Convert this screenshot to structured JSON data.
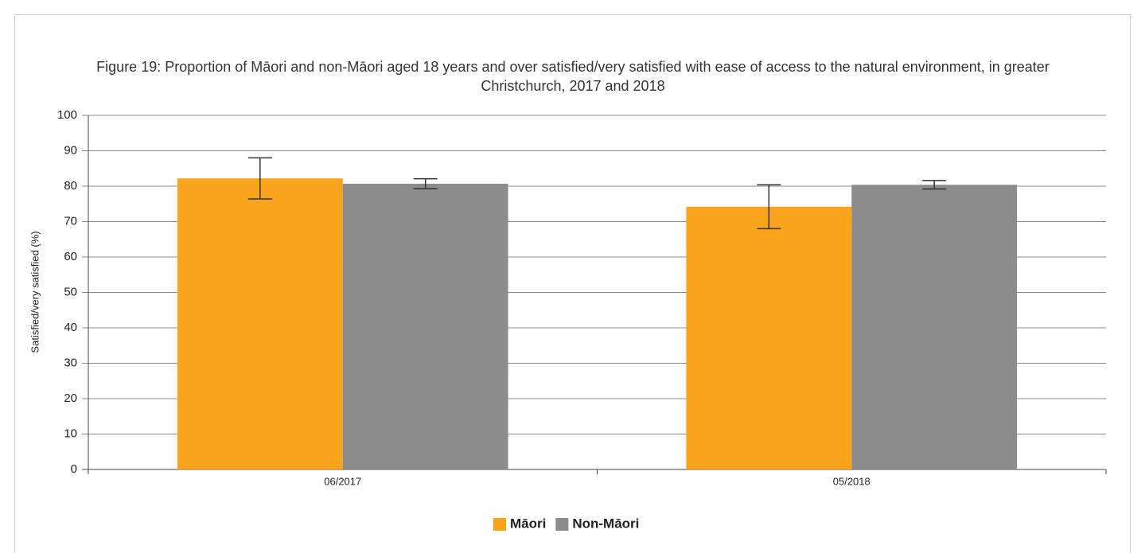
{
  "chart_data": {
    "type": "bar",
    "title": "Figure 19: Proportion of Māori and non-Māori aged 18 years and over satisfied/very satisfied with ease of access to the natural environment, in greater Christchurch, 2017 and 2018",
    "y_label": "Satisfied/very satisfied (%)",
    "categories": [
      "06/2017",
      "05/2018"
    ],
    "series": [
      {
        "name": "Māori",
        "color": "#f9a41b",
        "values": [
          82.2,
          74.2
        ],
        "errors": [
          5.8,
          6.2
        ]
      },
      {
        "name": "Non-Māori",
        "color": "#8c8c8c",
        "values": [
          80.7,
          80.4
        ],
        "errors": [
          1.4,
          1.2
        ]
      }
    ],
    "ylim": [
      0,
      100
    ],
    "yticks": [
      0,
      10,
      20,
      30,
      40,
      50,
      60,
      70,
      80,
      90,
      100
    ],
    "grid": true,
    "legend": "bottom"
  }
}
